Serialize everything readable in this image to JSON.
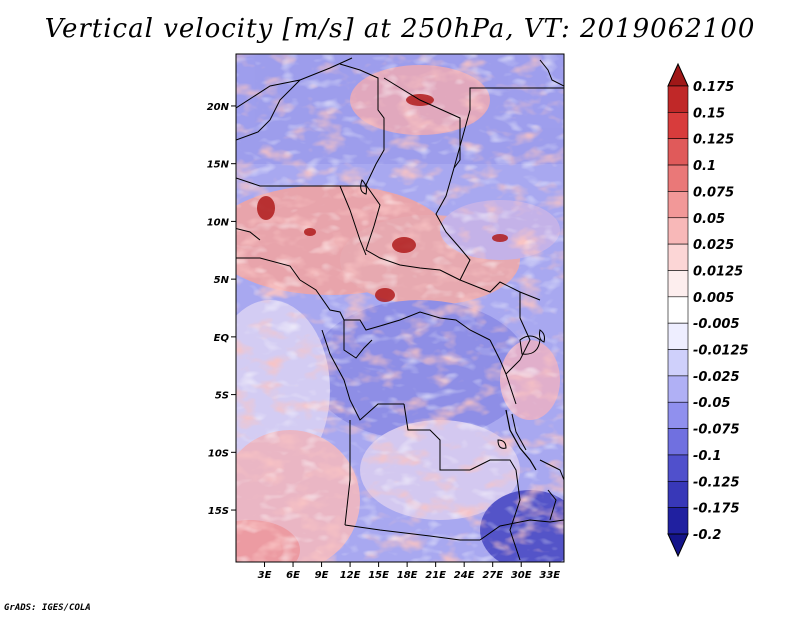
{
  "title": "Vertical velocity [m/s] at 250hPa, VT: 2019062100",
  "credit": "GrADS: IGES/COLA",
  "map": {
    "lon_range": [
      0,
      34.5
    ],
    "lat_range": [
      -19.5,
      24.5
    ],
    "lon_ticks": [
      {
        "value": 3,
        "label": "3E"
      },
      {
        "value": 6,
        "label": "6E"
      },
      {
        "value": 9,
        "label": "9E"
      },
      {
        "value": 12,
        "label": "12E"
      },
      {
        "value": 15,
        "label": "15E"
      },
      {
        "value": 18,
        "label": "18E"
      },
      {
        "value": 21,
        "label": "21E"
      },
      {
        "value": 24,
        "label": "24E"
      },
      {
        "value": 27,
        "label": "27E"
      },
      {
        "value": 30,
        "label": "30E"
      },
      {
        "value": 33,
        "label": "33E"
      }
    ],
    "lat_ticks": [
      {
        "value": 20,
        "label": "20N"
      },
      {
        "value": 15,
        "label": "15N"
      },
      {
        "value": 10,
        "label": "10N"
      },
      {
        "value": 5,
        "label": "5N"
      },
      {
        "value": 0,
        "label": "EQ"
      },
      {
        "value": -5,
        "label": "5S"
      },
      {
        "value": -10,
        "label": "10S"
      },
      {
        "value": -15,
        "label": "15S"
      }
    ]
  },
  "colorbar": {
    "levels": [
      "0.175",
      "0.15",
      "0.125",
      "0.1",
      "0.075",
      "0.05",
      "0.025",
      "0.0125",
      "0.005",
      "-0.005",
      "-0.0125",
      "-0.025",
      "-0.05",
      "-0.075",
      "-0.1",
      "-0.125",
      "-0.175",
      "-0.2"
    ],
    "colors": [
      "#a01818",
      "#c02828",
      "#d83c3c",
      "#e05a5a",
      "#ea7878",
      "#f29898",
      "#f8b8b8",
      "#fcd6d6",
      "#fdeeee",
      "#ffffff",
      "#eeeeff",
      "#cfd0fb",
      "#b0b0f5",
      "#9090ee",
      "#7070e0",
      "#5050cc",
      "#3838b8",
      "#2020a0",
      "#14148a"
    ]
  },
  "chart_data": {
    "type": "heatmap",
    "title": "Vertical velocity [m/s] at 250hPa, VT: 2019062100",
    "xlabel": "",
    "ylabel": "",
    "x_range": [
      0,
      34.5
    ],
    "y_range": [
      -19.5,
      24.5
    ]
  }
}
